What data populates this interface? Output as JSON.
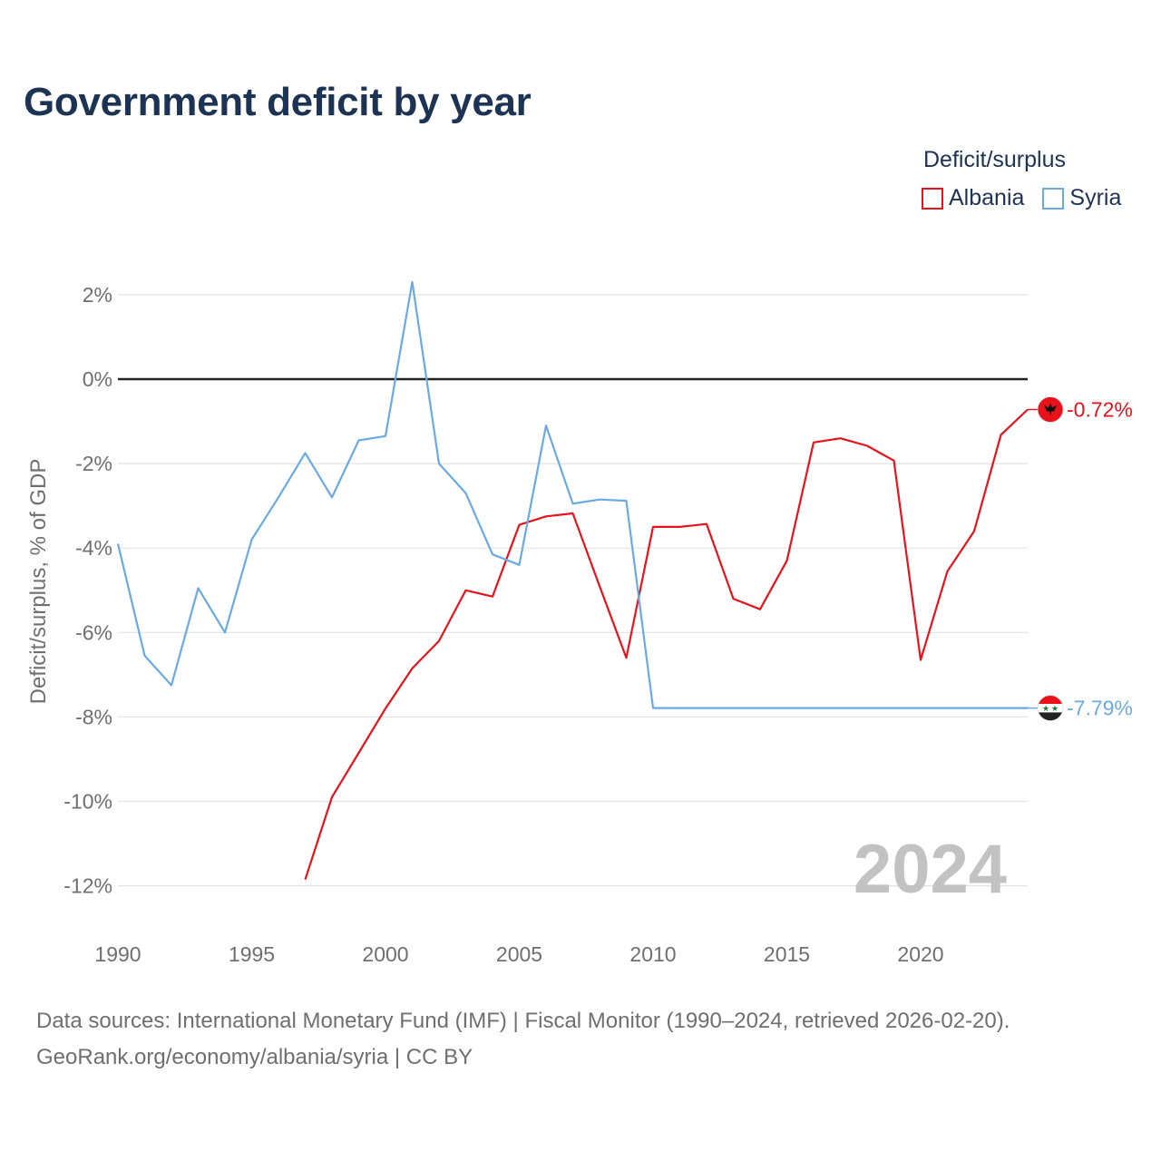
{
  "page": {
    "title": "Government deficit by year",
    "footer_line1": "Data sources: International Monetary Fund (IMF) | Fiscal Monitor (1990–2024, retrieved 2026-02-20).",
    "footer_line2": "GeoRank.org/economy/albania/syria | CC BY"
  },
  "legend": {
    "title": "Deficit/surplus",
    "items": [
      {
        "label": "Albania",
        "color": "#e8121b"
      },
      {
        "label": "Syria",
        "color": "#6aaae4"
      }
    ]
  },
  "chart_data": {
    "type": "line",
    "title": "Government deficit by year",
    "xlabel": "",
    "ylabel": "Deficit/surplus, % of GDP",
    "xlim": [
      1990,
      2024
    ],
    "ylim": [
      -13,
      2.5
    ],
    "x_ticks": [
      1990,
      1995,
      2000,
      2005,
      2010,
      2015,
      2020
    ],
    "y_ticks": [
      2,
      0,
      -2,
      -4,
      -6,
      -8,
      -10,
      -12
    ],
    "y_tick_labels": [
      "2%",
      "0%",
      "-2%",
      "-4%",
      "-6%",
      "-8%",
      "-10%",
      "-12%"
    ],
    "year_watermark": "2024",
    "grid": true,
    "series": [
      {
        "name": "Albania",
        "color": "#e8121b",
        "end_label": "-0.72%",
        "x": [
          1997,
          1998,
          1999,
          2000,
          2001,
          2002,
          2003,
          2004,
          2005,
          2006,
          2007,
          2008,
          2009,
          2010,
          2011,
          2012,
          2013,
          2014,
          2015,
          2016,
          2017,
          2018,
          2019,
          2020,
          2021,
          2022,
          2023,
          2024
        ],
        "y": [
          -11.85,
          -9.9,
          -8.85,
          -7.8,
          -6.85,
          -6.2,
          -5.0,
          -5.15,
          -3.45,
          -3.25,
          -3.18,
          -4.9,
          -6.6,
          -3.5,
          -3.5,
          -3.43,
          -5.2,
          -5.45,
          -4.3,
          -1.5,
          -1.4,
          -1.58,
          -1.93,
          -6.65,
          -4.55,
          -3.6,
          -1.32,
          -0.72
        ]
      },
      {
        "name": "Syria",
        "color": "#6aaae4",
        "end_label": "-7.79%",
        "x": [
          1990,
          1991,
          1992,
          1993,
          1994,
          1995,
          1996,
          1997,
          1998,
          1999,
          2000,
          2001,
          2002,
          2003,
          2004,
          2005,
          2006,
          2007,
          2008,
          2009,
          2010,
          2011,
          2012,
          2013,
          2014,
          2015,
          2016,
          2017,
          2018,
          2019,
          2020,
          2021,
          2022,
          2023,
          2024
        ],
        "y": [
          -3.9,
          -6.55,
          -7.25,
          -4.95,
          -6.0,
          -3.8,
          -2.8,
          -1.75,
          -2.8,
          -1.45,
          -1.35,
          2.3,
          -2.0,
          -2.7,
          -4.15,
          -4.4,
          -1.1,
          -2.95,
          -2.85,
          -2.88,
          -7.79,
          -7.79,
          -7.79,
          -7.79,
          -7.79,
          -7.79,
          -7.79,
          -7.79,
          -7.79,
          -7.79,
          -7.79,
          -7.79,
          -7.79,
          -7.79,
          -7.79
        ]
      }
    ]
  }
}
